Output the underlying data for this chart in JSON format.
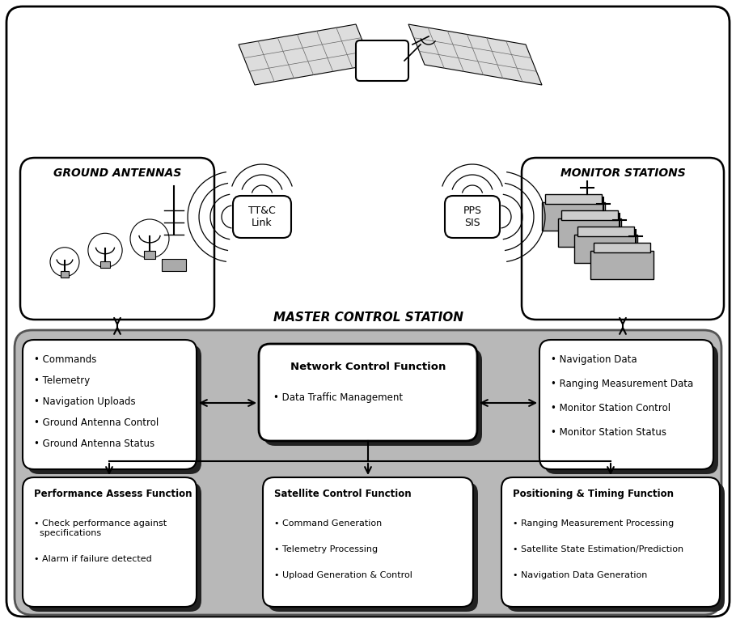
{
  "bg_color": "#ffffff",
  "gray_color": "#bbbbbb",
  "dark_shadow": "#222222",
  "ground_antennas_label": "GROUND ANTENNAS",
  "monitor_stations_label": "MONITOR STATIONS",
  "master_control_label": "MASTER CONTROL STATION",
  "ttc_link_label": "TT&C\nLink",
  "pps_sis_label": "PPS\nSIS",
  "left_box_items": [
    "Commands",
    "Telemetry",
    "Navigation Uploads",
    "Ground Antenna Control",
    "Ground Antenna Status"
  ],
  "ncf_title": "Network Control Function",
  "ncf_items": [
    "Data Traffic Management"
  ],
  "right_box_items": [
    "Navigation Data",
    "Ranging Measurement Data",
    "Monitor Station Control",
    "Monitor Station Status"
  ],
  "paf_title": "Performance Assess Function",
  "paf_items": [
    "Check performance against\n  specifications",
    "Alarm if failure detected"
  ],
  "scf_title": "Satellite Control Function",
  "scf_items": [
    "Command Generation",
    "Telemetry Processing",
    "Upload Generation & Control"
  ],
  "ptf_title": "Positioning & Timing Function",
  "ptf_items": [
    "Ranging Measurement Processing",
    "Satellite State Estimation/Prediction",
    "Navigation Data Generation"
  ]
}
